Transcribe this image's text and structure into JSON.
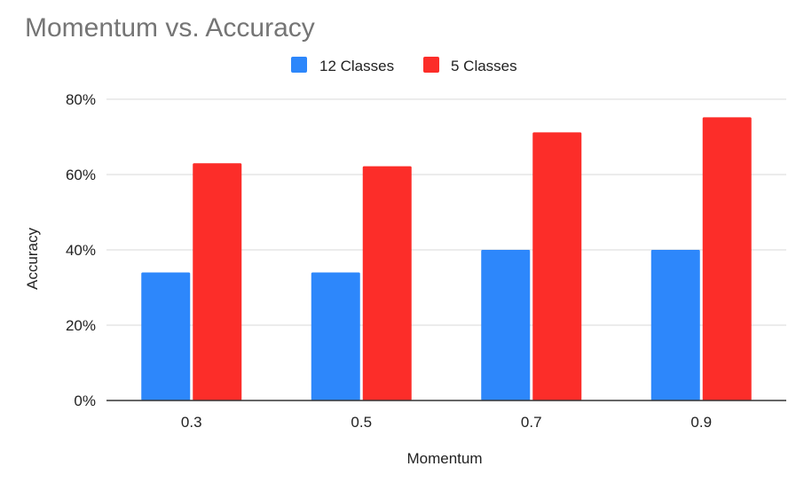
{
  "chart_data": {
    "type": "bar",
    "title": "Momentum vs. Accuracy",
    "xlabel": "Momentum",
    "ylabel": "Accuracy",
    "categories": [
      "0.3",
      "0.5",
      "0.7",
      "0.9"
    ],
    "series": [
      {
        "name": "12 Classes",
        "color": "#2d87fb",
        "values": [
          34,
          34,
          40,
          40
        ]
      },
      {
        "name": "5 Classes",
        "color": "#fc2d29",
        "values": [
          63,
          62.2,
          71.2,
          75.2
        ]
      }
    ],
    "ylim": [
      0,
      80
    ],
    "yticks": [
      "0%",
      "20%",
      "40%",
      "60%",
      "80%"
    ],
    "y_tick_values": [
      0,
      20,
      40,
      60,
      80
    ],
    "grid": true,
    "legend_position": "top-center"
  }
}
